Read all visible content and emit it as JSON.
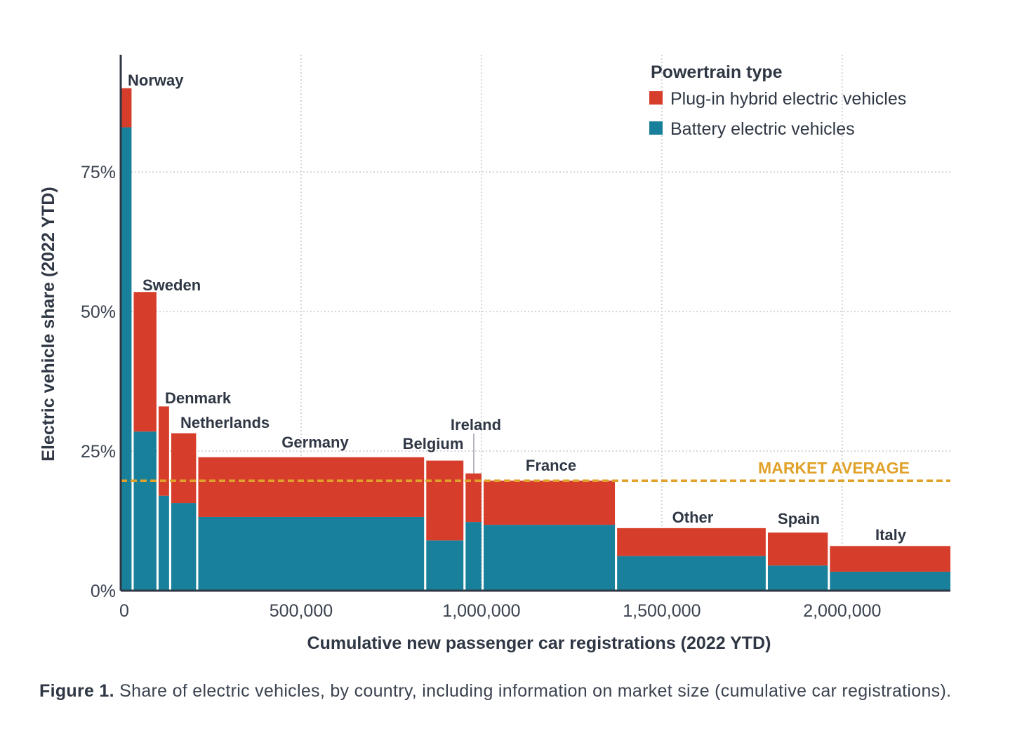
{
  "chart_data": {
    "type": "bar",
    "subtype": "variable-width stacked bar (marimekko)",
    "xlabel": "Cumulative new passenger car registrations (2022 YTD)",
    "ylabel": "Electric vehicle share (2022 YTD)",
    "xlim": [
      0,
      2300000
    ],
    "ylim": [
      0,
      96
    ],
    "x_ticks": [
      {
        "value": 0,
        "label": "0"
      },
      {
        "value": 500000,
        "label": "500,000"
      },
      {
        "value": 1000000,
        "label": "1,000,000"
      },
      {
        "value": 1500000,
        "label": "1,500,000"
      },
      {
        "value": 2000000,
        "label": "2,000,000"
      }
    ],
    "y_ticks": [
      {
        "value": 0,
        "label": "0%"
      },
      {
        "value": 25,
        "label": "25%"
      },
      {
        "value": 50,
        "label": "50%"
      },
      {
        "value": 75,
        "label": "75%"
      }
    ],
    "grid": true,
    "legend_position": "top-right",
    "legend": {
      "title": "Powertrain type",
      "items": [
        {
          "name": "Plug-in hybrid electric vehicles",
          "color": "#d63d2a"
        },
        {
          "name": "Battery electric vehicles",
          "color": "#19809b"
        }
      ]
    },
    "market_average": {
      "label": "MARKET AVERAGE",
      "value": 19.7,
      "color": "#e0a22a"
    },
    "series": [
      {
        "name": "Battery electric vehicles",
        "color": "#19809b"
      },
      {
        "name": "Plug-in hybrid electric vehicles",
        "color": "#d63d2a"
      }
    ],
    "categories": [
      {
        "name": "Norway",
        "x_start": 0,
        "x_end": 30000,
        "bev": 83,
        "phev": 7
      },
      {
        "name": "Sweden",
        "x_start": 36000,
        "x_end": 99000,
        "bev": 28.5,
        "phev": 25
      },
      {
        "name": "Denmark",
        "x_start": 105000,
        "x_end": 134000,
        "bev": 17,
        "phev": 16
      },
      {
        "name": "Netherlands",
        "x_start": 140000,
        "x_end": 209000,
        "bev": 15.7,
        "phev": 12.5
      },
      {
        "name": "Germany",
        "x_start": 215000,
        "x_end": 841000,
        "bev": 13.2,
        "phev": 10.7
      },
      {
        "name": "Belgium",
        "x_start": 847000,
        "x_end": 950000,
        "bev": 9,
        "phev": 14.3
      },
      {
        "name": "Ireland",
        "x_start": 956000,
        "x_end": 1000000,
        "bev": 12.3,
        "phev": 8.7
      },
      {
        "name": "France",
        "x_start": 1006000,
        "x_end": 1370000,
        "bev": 11.8,
        "phev": 7.9
      },
      {
        "name": "Other",
        "x_start": 1376000,
        "x_end": 1788000,
        "bev": 6.2,
        "phev": 5
      },
      {
        "name": "Spain",
        "x_start": 1794000,
        "x_end": 1960000,
        "bev": 4.5,
        "phev": 5.9
      },
      {
        "name": "Italy",
        "x_start": 1966000,
        "x_end": 2300000,
        "bev": 3.4,
        "phev": 4.6
      }
    ]
  },
  "caption": {
    "label": "Figure 1.",
    "text": " Share of electric vehicles, by country, including information on market size (cumulative car registrations)."
  }
}
